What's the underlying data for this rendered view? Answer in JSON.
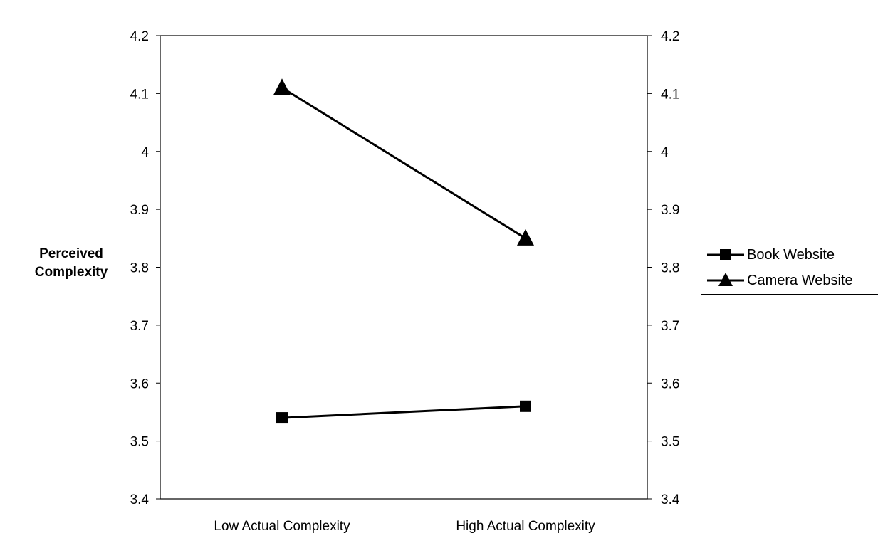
{
  "chart_data": {
    "type": "line",
    "title": "",
    "xlabel": "",
    "ylabel": [
      "Perceived",
      "Complexity"
    ],
    "categories": [
      "Low Actual Complexity",
      "High Actual Complexity"
    ],
    "series": [
      {
        "name": "Book Website",
        "values": [
          3.54,
          3.56
        ],
        "marker": "square",
        "color": "#000000"
      },
      {
        "name": "Camera Website",
        "values": [
          4.11,
          3.85
        ],
        "marker": "triangle",
        "color": "#000000"
      }
    ],
    "ylim": [
      3.4,
      4.2
    ],
    "y_ticks": [
      "3.4",
      "3.5",
      "3.6",
      "3.7",
      "3.8",
      "3.9",
      "4",
      "4.1",
      "4.2"
    ],
    "y_axis_secondary": true,
    "grid": false,
    "legend_position": "right"
  }
}
